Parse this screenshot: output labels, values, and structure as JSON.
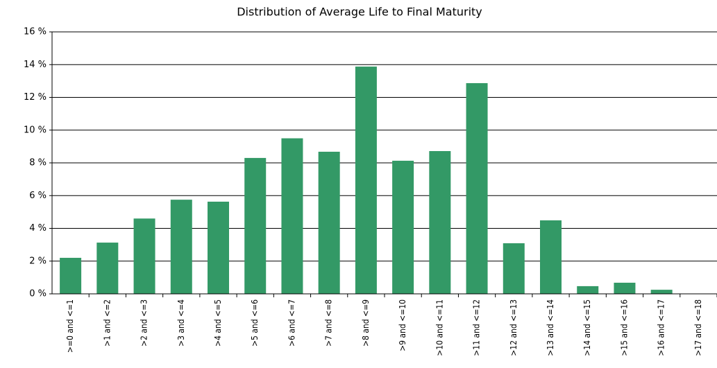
{
  "chart_data": {
    "type": "bar",
    "title": "Distribution of Average Life to Final Maturity",
    "categories": [
      ">=0 and <=1",
      ">1 and <=2",
      ">2 and <=3",
      ">3 and <=4",
      ">4 and <=5",
      ">5 and <=6",
      ">6 and <=7",
      ">7 and <=8",
      ">8 and <=9",
      ">9 and <=10",
      ">10 and <=11",
      ">11 and <=12",
      ">12 and <=13",
      ">13 and <=14",
      ">14 and <=15",
      ">15 and <=16",
      ">16 and <=17",
      ">17 and <=18"
    ],
    "values": [
      2.2,
      3.13,
      4.6,
      5.75,
      5.63,
      8.3,
      9.5,
      8.68,
      13.88,
      8.13,
      8.72,
      12.87,
      3.09,
      4.49,
      0.47,
      0.68,
      0.25,
      0.02
    ],
    "color": "#339966",
    "ylim": [
      0,
      16
    ],
    "yticks": [
      {
        "value": 0,
        "label": "0 %"
      },
      {
        "value": 2,
        "label": "2 %"
      },
      {
        "value": 4,
        "label": "4 %"
      },
      {
        "value": 6,
        "label": "6 %"
      },
      {
        "value": 8,
        "label": "8 %"
      },
      {
        "value": 10,
        "label": "10 %"
      },
      {
        "value": 12,
        "label": "12 %"
      },
      {
        "value": 14,
        "label": "14 %"
      },
      {
        "value": 16,
        "label": "16 %"
      }
    ],
    "grid": true
  }
}
